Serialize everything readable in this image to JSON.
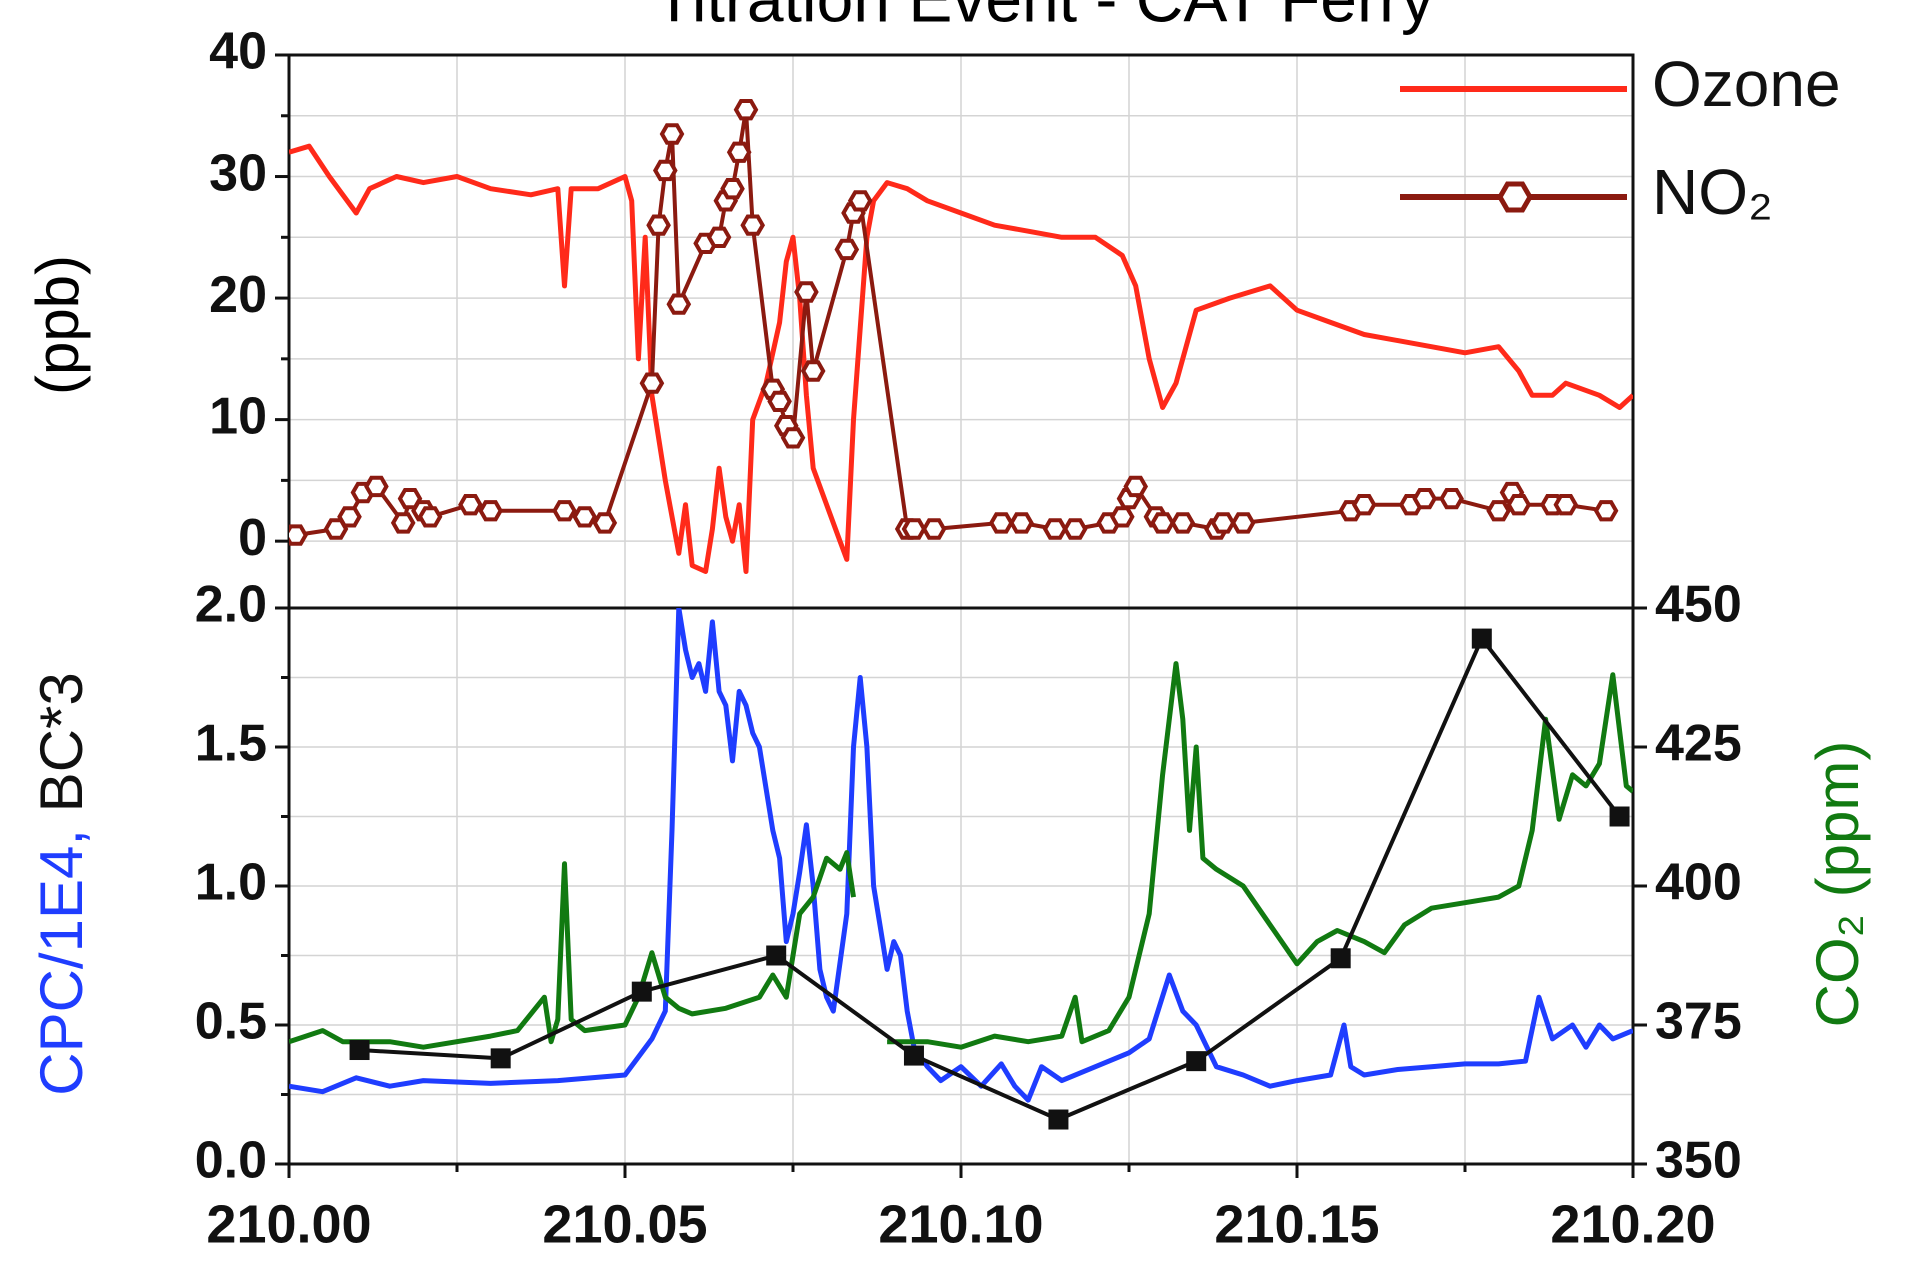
{
  "chart_data": [
    {
      "type": "line",
      "title": "Titration Event - CAT Ferry",
      "ylabel": "(ppb)",
      "xlim": [
        210.0,
        210.2
      ],
      "ylim": [
        -5.5,
        40
      ],
      "yticks": [
        0,
        10,
        20,
        30,
        40
      ],
      "yminor": [
        5,
        15,
        25,
        35
      ],
      "grid": true,
      "legend": "upper right",
      "series": [
        {
          "name": "Ozone",
          "color": "#ff2a1a",
          "x": [
            210.0,
            210.003,
            210.006,
            210.01,
            210.012,
            210.016,
            210.02,
            210.025,
            210.03,
            210.036,
            210.04,
            210.041,
            210.042,
            210.046,
            210.05,
            210.051,
            210.052,
            210.053,
            210.054,
            210.056,
            210.058,
            210.059,
            210.06,
            210.062,
            210.063,
            210.064,
            210.065,
            210.066,
            210.067,
            210.068,
            210.069,
            210.071,
            210.073,
            210.074,
            210.075,
            210.076,
            210.077,
            210.078,
            210.08,
            210.082,
            210.083,
            210.084,
            210.086,
            210.087,
            210.089,
            210.092,
            210.095,
            210.1,
            210.105,
            210.11,
            210.115,
            210.12,
            210.124,
            210.126,
            210.128,
            210.13,
            210.132,
            210.135,
            210.14,
            210.146,
            210.15,
            210.155,
            210.16,
            210.165,
            210.17,
            210.175,
            210.18,
            210.183,
            210.185,
            210.188,
            210.19,
            210.195,
            210.198,
            210.2
          ],
          "values": [
            32,
            32.5,
            30,
            27,
            29,
            30,
            29.5,
            30,
            29,
            28.5,
            29,
            21,
            29,
            29,
            30,
            28,
            15,
            25,
            12,
            5,
            -1,
            3,
            -2,
            -2.5,
            1,
            6,
            2,
            0,
            3,
            -2.5,
            10,
            13,
            18,
            23,
            25,
            20,
            12,
            6,
            3,
            0,
            -1.5,
            10,
            25,
            28,
            29.5,
            29,
            28,
            27,
            26,
            25.5,
            25,
            25,
            23.5,
            21,
            15,
            11,
            13,
            19,
            20,
            21,
            19,
            18,
            17,
            16.5,
            16,
            15.5,
            16,
            14,
            12,
            12,
            13,
            12,
            11,
            12
          ]
        },
        {
          "name": "NO₂",
          "color": "#8b1a10",
          "marker": "hexagon",
          "x": [
            210.001,
            210.007,
            210.009,
            210.011,
            210.013,
            210.017,
            210.018,
            210.02,
            210.021,
            210.027,
            210.03,
            210.041,
            210.044,
            210.047,
            210.054,
            210.055,
            210.056,
            210.057,
            210.058,
            210.062,
            210.064,
            210.065,
            210.066,
            210.067,
            210.068,
            210.069,
            210.072,
            210.073,
            210.074,
            210.075,
            210.077,
            210.078,
            210.083,
            210.084,
            210.085,
            210.092,
            210.093,
            210.096,
            210.106,
            210.109,
            210.114,
            210.117,
            210.122,
            210.124,
            210.125,
            210.126,
            210.129,
            210.13,
            210.133,
            210.138,
            210.139,
            210.142,
            210.158,
            210.16,
            210.167,
            210.169,
            210.173,
            210.18,
            210.182,
            210.183,
            210.188,
            210.19,
            210.196
          ],
          "values": [
            0.5,
            1,
            2,
            4,
            4.5,
            1.5,
            3.5,
            2.5,
            2,
            3,
            2.5,
            2.5,
            2,
            1.5,
            13,
            26,
            30.5,
            33.5,
            19.5,
            24.5,
            25,
            28,
            29,
            32,
            35.5,
            26,
            12.5,
            11.5,
            9.5,
            8.5,
            20.5,
            14,
            24,
            27,
            28,
            1,
            1,
            1,
            1.5,
            1.5,
            1,
            1,
            1.5,
            2,
            3.5,
            4.5,
            2,
            1.5,
            1.5,
            1,
            1.5,
            1.5,
            2.5,
            3,
            3,
            3.5,
            3.5,
            2.5,
            4,
            3,
            3,
            3,
            2.5
          ]
        }
      ]
    },
    {
      "type": "line",
      "ylabel_parts": [
        "CPC/1E4,",
        "BC*3"
      ],
      "y2label": "CO₂ (ppm)",
      "xlim": [
        210.0,
        210.2
      ],
      "xticks": [
        {
          "value": 210.0,
          "label": "210.00"
        },
        {
          "value": 210.05,
          "label": "210.05"
        },
        {
          "value": 210.1,
          "label": "210.10"
        },
        {
          "value": 210.15,
          "label": "210.15"
        },
        {
          "value": 210.2,
          "label": "210.20"
        }
      ],
      "xminor": [
        210.025,
        210.075,
        210.125,
        210.175
      ],
      "ylim": [
        0,
        2
      ],
      "yticks": [
        {
          "value": 0,
          "label": "0.0"
        },
        {
          "value": 0.5,
          "label": "0.5"
        },
        {
          "value": 1,
          "label": "1.0"
        },
        {
          "value": 1.5,
          "label": "1.5"
        },
        {
          "value": 2,
          "label": "2.0"
        }
      ],
      "yminor": [
        0.25,
        0.75,
        1.25,
        1.75
      ],
      "y2lim": [
        350,
        450
      ],
      "y2ticks": [
        350,
        375,
        400,
        425,
        450
      ],
      "grid": true,
      "series": [
        {
          "color": "#1f3dff",
          "x": [
            210.0,
            210.005,
            210.01,
            210.015,
            210.02,
            210.03,
            210.04,
            210.05,
            210.054,
            210.056,
            210.057,
            210.058,
            210.059,
            210.06,
            210.061,
            210.062,
            210.063,
            210.064,
            210.065,
            210.066,
            210.067,
            210.068,
            210.069,
            210.07,
            210.072,
            210.073,
            210.074,
            210.075,
            210.076,
            210.077,
            210.078,
            210.079,
            210.08,
            210.081,
            210.083,
            210.084,
            210.085,
            210.086,
            210.087,
            210.088,
            210.089,
            210.09,
            210.091,
            210.092,
            210.093,
            210.095,
            210.097,
            210.1,
            210.103,
            210.106,
            210.108,
            210.11,
            210.112,
            210.115,
            210.12,
            210.125,
            210.128,
            210.131,
            210.133,
            210.135,
            210.138,
            210.142,
            210.146,
            210.15,
            210.155,
            210.157,
            210.158,
            210.16,
            210.165,
            210.17,
            210.175,
            210.18,
            210.184,
            210.186,
            210.188,
            210.191,
            210.193,
            210.195,
            210.197,
            210.2
          ],
          "values": [
            0.28,
            0.26,
            0.31,
            0.28,
            0.3,
            0.29,
            0.3,
            0.32,
            0.45,
            0.55,
            1.2,
            2.0,
            1.85,
            1.75,
            1.8,
            1.7,
            1.95,
            1.7,
            1.65,
            1.45,
            1.7,
            1.65,
            1.55,
            1.5,
            1.2,
            1.1,
            0.8,
            0.9,
            1.05,
            1.22,
            1.0,
            0.7,
            0.6,
            0.55,
            0.9,
            1.5,
            1.75,
            1.5,
            1.0,
            0.85,
            0.7,
            0.8,
            0.75,
            0.55,
            0.42,
            0.35,
            0.3,
            0.35,
            0.28,
            0.36,
            0.28,
            0.23,
            0.35,
            0.3,
            0.35,
            0.4,
            0.45,
            0.68,
            0.55,
            0.5,
            0.35,
            0.32,
            0.28,
            0.3,
            0.32,
            0.5,
            0.35,
            0.32,
            0.34,
            0.35,
            0.36,
            0.36,
            0.37,
            0.6,
            0.45,
            0.5,
            0.42,
            0.5,
            0.45,
            0.48
          ]
        },
        {
          "color": "#117a11",
          "axis": "y2",
          "x": [
            210.0,
            210.005,
            210.008,
            210.015,
            210.02,
            210.03,
            210.034,
            210.038,
            210.039,
            210.04,
            210.041,
            210.042,
            210.044,
            210.05,
            210.052,
            210.054,
            210.056,
            210.058,
            210.06,
            210.065,
            210.07,
            210.072,
            210.074,
            210.076,
            210.078,
            210.08,
            210.082,
            210.083,
            210.084,
            210.086,
            210.089,
            210.095,
            210.1,
            210.105,
            210.11,
            210.115,
            210.117,
            210.118,
            210.122,
            210.125,
            210.128,
            210.13,
            210.132,
            210.133,
            210.134,
            210.135,
            210.136,
            210.138,
            210.142,
            210.146,
            210.15,
            210.153,
            210.156,
            210.16,
            210.163,
            210.166,
            210.17,
            210.175,
            210.18,
            210.183,
            210.185,
            210.187,
            210.189,
            210.191,
            210.193,
            210.195,
            210.197,
            210.199,
            210.2
          ],
          "values": [
            372,
            374,
            372,
            372,
            371,
            373,
            374,
            380,
            372,
            376,
            404,
            376,
            374,
            375,
            380,
            388,
            380,
            378,
            377,
            378,
            380,
            384,
            380,
            395,
            398,
            405,
            403,
            406,
            398,
            null,
            372,
            372,
            371,
            373,
            372,
            373,
            380,
            372,
            374,
            380,
            395,
            420,
            440,
            430,
            410,
            425,
            405,
            403,
            400,
            393,
            386,
            390,
            392,
            390,
            388,
            393,
            396,
            397,
            398,
            400,
            410,
            430,
            412,
            420,
            418,
            422,
            438,
            418,
            417
          ]
        },
        {
          "color": "#111111",
          "marker": "square",
          "x": [
            210.0105,
            210.0315,
            210.0525,
            210.0725,
            210.093,
            210.1145,
            210.135,
            210.1565,
            210.1775,
            210.198
          ],
          "values": [
            0.41,
            0.38,
            0.62,
            0.75,
            0.39,
            0.16,
            0.37,
            0.74,
            1.89,
            1.25
          ]
        }
      ]
    }
  ]
}
